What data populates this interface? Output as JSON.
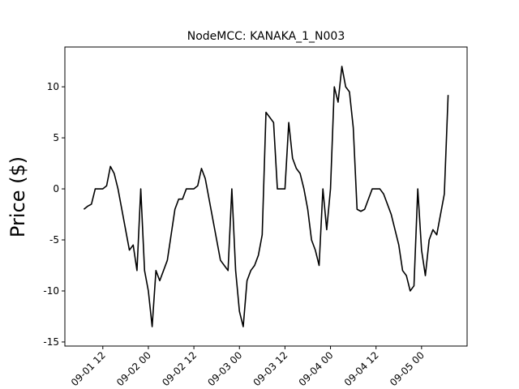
{
  "chart_data": {
    "type": "line",
    "title": "NodeMCC: KANAKA_1_N003",
    "ylabel": "Price ($)",
    "x": [
      "09-01 07",
      "09-01 08",
      "09-01 09",
      "09-01 10",
      "09-01 11",
      "09-01 12",
      "09-01 13",
      "09-01 14",
      "09-01 15",
      "09-01 16",
      "09-01 17",
      "09-01 18",
      "09-01 19",
      "09-01 20",
      "09-01 21",
      "09-01 22",
      "09-01 23",
      "09-02 00",
      "09-02 01",
      "09-02 02",
      "09-02 03",
      "09-02 04",
      "09-02 05",
      "09-02 06",
      "09-02 07",
      "09-02 08",
      "09-02 09",
      "09-02 10",
      "09-02 11",
      "09-02 12",
      "09-02 13",
      "09-02 14",
      "09-02 15",
      "09-02 16",
      "09-02 17",
      "09-02 18",
      "09-02 19",
      "09-02 20",
      "09-02 21",
      "09-02 22",
      "09-02 23",
      "09-03 00",
      "09-03 01",
      "09-03 02",
      "09-03 03",
      "09-03 04",
      "09-03 05",
      "09-03 06",
      "09-03 07",
      "09-03 08",
      "09-03 09",
      "09-03 10",
      "09-03 11",
      "09-03 12",
      "09-03 13",
      "09-03 14",
      "09-03 15",
      "09-03 16",
      "09-03 17",
      "09-03 18",
      "09-03 19",
      "09-03 20",
      "09-03 21",
      "09-03 22",
      "09-03 23",
      "09-04 00",
      "09-04 01",
      "09-04 02",
      "09-04 03",
      "09-04 04",
      "09-04 05",
      "09-04 06",
      "09-04 07",
      "09-04 08",
      "09-04 09",
      "09-04 10",
      "09-04 11",
      "09-04 12",
      "09-04 13",
      "09-04 14",
      "09-04 15",
      "09-04 16",
      "09-04 17",
      "09-04 18",
      "09-04 19",
      "09-04 20",
      "09-04 21",
      "09-04 22",
      "09-04 23",
      "09-05 00",
      "09-05 01",
      "09-05 02",
      "09-05 03",
      "09-05 04",
      "09-05 05",
      "09-05 06",
      "09-05 07"
    ],
    "series": [
      {
        "color": "#000000",
        "values": [
          -2,
          -1.7,
          -1.5,
          0,
          0,
          0,
          0.3,
          2.2,
          1.5,
          0,
          -2,
          -4,
          -6,
          -5.5,
          -8,
          0,
          -8,
          -10,
          -13.5,
          -8,
          -9,
          -8,
          -7,
          -4.5,
          -2,
          -1,
          -1,
          0,
          0,
          0,
          0.3,
          2,
          1,
          -1,
          -3,
          -5,
          -7,
          -7.5,
          -8,
          0,
          -8,
          -12,
          -13.5,
          -9,
          -8,
          -7.5,
          -6.5,
          -4.5,
          7.5,
          7,
          6.5,
          0,
          0,
          0,
          6.5,
          3,
          2,
          1.5,
          0,
          -2,
          -5,
          -6,
          -7.5,
          0,
          -4,
          0,
          10,
          8.5,
          12,
          10,
          9.5,
          6,
          -2,
          -2.2,
          -2,
          -1,
          0,
          0,
          0,
          -0.5,
          -1.5,
          -2.5,
          -4,
          -5.5,
          -8,
          -8.5,
          -10,
          -9.5,
          0,
          -6,
          -8.5,
          -5,
          -4,
          -4.5,
          -2.5,
          -0.5,
          9.2
        ]
      }
    ],
    "xlim": [
      "09-01 02",
      "09-05 12"
    ],
    "xticks": [
      "09-01 12",
      "09-02 00",
      "09-02 12",
      "09-03 00",
      "09-03 12",
      "09-04 00",
      "09-04 12",
      "09-05 00"
    ],
    "ylim": [
      -15.4,
      13.9
    ],
    "yticks": [
      -15,
      -10,
      -5,
      0,
      5,
      10
    ]
  }
}
